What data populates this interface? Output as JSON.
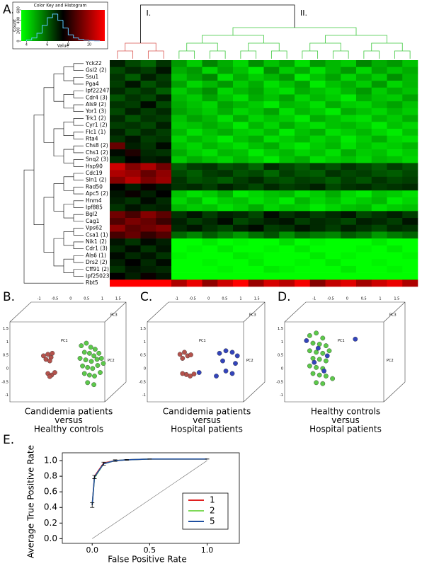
{
  "chart_data": [
    {
      "type": "histogram",
      "panel": "A.",
      "title": "Color Key and Histogram",
      "xlabel": "Value",
      "ylabel": "Count",
      "bins": [
        4,
        4.5,
        5,
        5.5,
        6,
        6.5,
        7,
        7.5,
        8,
        8.5,
        9,
        9.5,
        10,
        10.5,
        11
      ],
      "values": [
        20,
        60,
        150,
        300,
        450,
        520,
        400,
        250,
        120,
        60,
        30,
        15,
        8,
        3
      ],
      "color": "#5bc8ff",
      "scale_colors": [
        "#00ff00",
        "#000000",
        "#ff0000"
      ],
      "xlim": [
        3.5,
        11.5
      ],
      "ylim": [
        0,
        600
      ],
      "xticks": [
        4,
        6,
        8,
        10
      ],
      "yticks": [
        0,
        200,
        400,
        600
      ]
    },
    {
      "type": "heatmap",
      "clusters": [
        "I.",
        "II."
      ],
      "cluster_colors": [
        "#d9534f",
        "#3cc83c"
      ],
      "column_cluster": [
        0,
        0,
        0,
        0,
        1,
        1,
        1,
        1,
        1,
        1,
        1,
        1,
        1,
        1,
        1,
        1,
        1,
        1,
        1,
        1
      ],
      "rows": [
        "Yck22",
        "Gsl2 (2)",
        "Ssu1",
        "Pga4",
        "Ipf22247",
        "Cdr4 (3)",
        "Als9 (2)",
        "Yor1 (3)",
        "Trk1 (2)",
        "Cyr1 (2)",
        "Flc1 (1)",
        "Rta4",
        "Chs8 (2)",
        "Chs1 (2)",
        "Snq2 (3)",
        "Hsp90",
        "Cdc19",
        "Sln1 (2)",
        "Rad50",
        "Apc5 (2)",
        "Hnm4",
        "Ipf885",
        "Bgl2",
        "Cag1",
        "Vps62",
        "Csa1 (1)",
        "Nik1 (2)",
        "Cdr1 (3)",
        "Als6 (1)",
        "Drs2 (2)",
        "Cff91 (2)",
        "Ipf25023",
        "Rbt5"
      ],
      "values": [
        [
          7.2,
          6.8,
          6.5,
          7.0,
          6.0,
          5.5,
          6.2,
          5.8,
          5.4,
          6.1,
          5.6,
          5.9,
          5.3,
          6.0,
          5.7,
          5.5,
          6.2,
          5.8,
          6.0,
          5.6
        ],
        [
          6.8,
          7.1,
          6.9,
          7.3,
          5.8,
          6.0,
          5.4,
          5.9,
          5.6,
          5.2,
          6.1,
          5.5,
          5.8,
          5.3,
          5.7,
          6.0,
          5.4,
          5.9,
          5.6,
          5.8
        ],
        [
          7.0,
          6.6,
          7.2,
          6.9,
          5.6,
          5.9,
          6.2,
          5.3,
          5.8,
          5.5,
          5.7,
          6.0,
          5.2,
          5.6,
          5.9,
          5.4,
          5.8,
          5.5,
          6.1,
          5.7
        ],
        [
          6.9,
          7.3,
          6.7,
          7.0,
          5.9,
          5.4,
          5.7,
          6.0,
          5.5,
          5.8,
          5.3,
          5.6,
          5.9,
          5.2,
          5.6,
          5.8,
          5.5,
          6.0,
          5.4,
          5.7
        ],
        [
          7.1,
          6.8,
          7.0,
          6.6,
          5.5,
          5.8,
          6.1,
          5.4,
          5.7,
          5.9,
          5.5,
          5.3,
          5.8,
          5.6,
          5.4,
          5.7,
          6.0,
          5.5,
          5.8,
          5.6
        ],
        [
          6.7,
          7.0,
          6.8,
          7.2,
          5.7,
          5.5,
          5.9,
          5.6,
          5.3,
          5.8,
          5.6,
          5.9,
          5.4,
          5.7,
          5.5,
          5.2,
          5.8,
          5.6,
          5.5,
          5.9
        ],
        [
          7.0,
          6.9,
          7.4,
          6.8,
          5.8,
          5.6,
          5.4,
          5.9,
          5.7,
          5.5,
          5.2,
          5.7,
          5.6,
          5.3,
          5.8,
          5.5,
          5.4,
          5.7,
          5.9,
          5.6
        ],
        [
          6.8,
          7.2,
          6.9,
          7.1,
          5.9,
          5.7,
          5.5,
          5.8,
          5.4,
          5.6,
          5.9,
          5.3,
          5.7,
          5.5,
          5.2,
          5.8,
          5.6,
          5.4,
          5.7,
          5.5
        ],
        [
          7.1,
          6.7,
          7.0,
          6.9,
          5.6,
          5.9,
          5.7,
          5.3,
          5.8,
          5.4,
          5.6,
          5.5,
          5.2,
          5.8,
          5.6,
          5.4,
          5.3,
          5.7,
          5.5,
          5.8
        ],
        [
          6.9,
          7.0,
          6.8,
          7.2,
          5.5,
          5.6,
          5.8,
          5.6,
          5.2,
          5.7,
          5.4,
          5.8,
          5.5,
          5.3,
          5.6,
          5.7,
          5.5,
          5.2,
          5.6,
          5.4
        ],
        [
          7.2,
          6.8,
          7.1,
          6.9,
          5.7,
          5.3,
          5.6,
          5.8,
          5.5,
          5.4,
          5.7,
          5.2,
          5.6,
          5.8,
          5.3,
          5.5,
          5.7,
          5.4,
          5.2,
          5.6
        ],
        [
          7.0,
          7.3,
          6.9,
          7.0,
          5.4,
          5.7,
          5.5,
          5.2,
          5.6,
          5.8,
          5.3,
          5.5,
          5.7,
          5.4,
          5.6,
          5.2,
          5.5,
          5.8,
          5.4,
          5.3
        ],
        [
          8.5,
          7.2,
          7.0,
          7.4,
          5.6,
          5.4,
          5.7,
          5.5,
          5.3,
          5.6,
          5.8,
          5.4,
          5.2,
          5.5,
          5.7,
          5.3,
          5.6,
          5.4,
          5.5,
          5.7
        ],
        [
          7.4,
          7.8,
          7.1,
          7.0,
          5.8,
          5.5,
          5.3,
          5.7,
          5.6,
          5.2,
          5.5,
          5.7,
          5.4,
          5.6,
          5.3,
          5.8,
          5.5,
          5.6,
          5.3,
          5.5
        ],
        [
          7.1,
          7.5,
          7.2,
          7.3,
          5.5,
          5.8,
          5.6,
          5.4,
          5.7,
          5.5,
          5.2,
          5.6,
          5.8,
          5.3,
          5.5,
          5.6,
          5.4,
          5.7,
          5.6,
          5.4
        ],
        [
          9.5,
          8.8,
          9.2,
          8.6,
          6.6,
          6.9,
          7.0,
          6.7,
          6.8,
          6.5,
          7.1,
          6.8,
          6.6,
          6.9,
          6.7,
          7.0,
          6.8,
          6.6,
          6.9,
          6.7
        ],
        [
          9.2,
          9.0,
          8.5,
          8.9,
          6.8,
          6.6,
          6.9,
          7.0,
          6.7,
          6.8,
          6.5,
          6.9,
          6.7,
          6.6,
          7.0,
          6.8,
          6.9,
          6.7,
          6.6,
          6.8
        ],
        [
          8.8,
          9.3,
          8.7,
          9.0,
          7.0,
          6.7,
          6.8,
          6.6,
          6.9,
          7.1,
          6.8,
          6.7,
          6.9,
          6.8,
          6.6,
          6.9,
          6.7,
          7.0,
          6.8,
          6.9
        ],
        [
          7.5,
          7.2,
          7.6,
          7.3,
          7.0,
          7.1,
          6.9,
          7.2,
          7.0,
          6.8,
          7.1,
          6.9,
          7.0,
          7.2,
          6.8,
          7.0,
          7.1,
          6.9,
          7.0,
          7.1
        ],
        [
          7.3,
          7.6,
          7.2,
          7.5,
          5.6,
          5.3,
          5.5,
          5.8,
          5.2,
          5.4,
          5.6,
          5.7,
          5.3,
          5.5,
          5.8,
          5.4,
          5.2,
          5.6,
          5.5,
          5.3
        ],
        [
          7.2,
          7.0,
          7.4,
          7.1,
          5.4,
          5.7,
          5.2,
          5.5,
          5.6,
          5.3,
          5.5,
          5.2,
          5.7,
          5.4,
          5.6,
          5.3,
          5.5,
          5.7,
          5.2,
          5.4
        ],
        [
          7.0,
          7.3,
          7.1,
          7.2,
          5.7,
          5.5,
          5.6,
          5.3,
          5.5,
          5.8,
          5.4,
          5.6,
          5.5,
          5.2,
          5.4,
          5.6,
          5.7,
          5.3,
          5.5,
          5.6
        ],
        [
          8.6,
          8.2,
          8.8,
          8.4,
          7.0,
          7.3,
          6.9,
          7.2,
          7.1,
          6.8,
          7.4,
          7.0,
          7.2,
          6.9,
          7.1,
          7.3,
          6.8,
          7.0,
          7.2,
          6.9
        ],
        [
          8.3,
          8.7,
          8.5,
          8.1,
          7.2,
          6.9,
          7.1,
          7.4,
          6.8,
          7.0,
          7.2,
          7.3,
          6.9,
          7.1,
          7.0,
          6.8,
          7.2,
          7.1,
          6.9,
          7.3
        ],
        [
          8.9,
          8.4,
          8.6,
          8.8,
          7.1,
          7.3,
          7.0,
          6.8,
          7.2,
          7.4,
          6.9,
          7.0,
          7.3,
          7.1,
          6.9,
          7.2,
          7.0,
          6.8,
          7.1,
          7.0
        ],
        [
          8.2,
          8.5,
          8.0,
          8.3,
          6.5,
          6.2,
          6.6,
          6.3,
          6.0,
          6.4,
          6.7,
          6.1,
          6.5,
          6.3,
          6.2,
          6.6,
          6.4,
          6.0,
          6.3,
          6.5
        ],
        [
          7.3,
          7.0,
          7.4,
          7.2,
          5.0,
          4.8,
          5.2,
          4.9,
          5.1,
          4.7,
          5.0,
          5.3,
          4.8,
          5.1,
          4.9,
          5.0,
          4.7,
          5.2,
          4.9,
          5.0
        ],
        [
          7.1,
          7.4,
          7.0,
          7.3,
          4.9,
          5.1,
          4.8,
          5.2,
          4.7,
          5.0,
          5.1,
          4.9,
          5.2,
          4.8,
          5.0,
          4.7,
          5.1,
          4.9,
          5.2,
          4.8
        ],
        [
          7.4,
          7.1,
          7.3,
          7.0,
          5.1,
          4.9,
          5.0,
          4.8,
          5.2,
          5.1,
          4.8,
          5.0,
          4.9,
          5.2,
          4.8,
          5.1,
          5.0,
          4.9,
          4.8,
          5.1
        ],
        [
          7.2,
          7.5,
          7.1,
          7.4,
          4.8,
          5.0,
          5.1,
          4.9,
          4.8,
          5.2,
          5.0,
          4.7,
          5.1,
          4.9,
          5.2,
          4.8,
          4.9,
          5.1,
          5.0,
          4.8
        ],
        [
          7.0,
          7.3,
          7.2,
          7.1,
          5.0,
          4.8,
          4.9,
          5.1,
          5.0,
          4.8,
          5.2,
          5.1,
          4.7,
          5.0,
          4.9,
          5.2,
          4.8,
          5.0,
          5.1,
          4.9
        ],
        [
          7.5,
          7.2,
          7.6,
          7.3,
          4.6,
          4.5,
          4.7,
          4.4,
          4.6,
          4.8,
          4.5,
          4.6,
          4.4,
          4.7,
          4.5,
          4.6,
          4.8,
          4.5,
          4.4,
          4.6
        ],
        [
          10.5,
          10.8,
          10.2,
          10.6,
          9.2,
          9.8,
          8.9,
          9.5,
          10.1,
          9.0,
          9.6,
          9.3,
          9.9,
          8.8,
          9.4,
          9.7,
          9.1,
          9.5,
          9.8,
          9.2
        ]
      ]
    },
    {
      "type": "scatter3d",
      "panel": "B.",
      "caption": [
        "Candidemia patients",
        "versus",
        "Healthy controls"
      ],
      "axis_labels": [
        "PC1",
        "PC2",
        "PC3"
      ],
      "ticks": [
        -1,
        -0.5,
        0,
        0.5,
        1,
        1.5
      ],
      "xlim": [
        -1,
        1
      ],
      "ylim": [
        -1,
        1
      ],
      "series": [
        {
          "color": "#b4524c",
          "x": [
            -0.4,
            -0.33,
            -0.28,
            -0.36,
            -0.3,
            -0.26,
            -0.33,
            -0.27,
            -0.22,
            -0.3
          ],
          "values": [
            0.05,
            0.08,
            0.02,
            -0.02,
            -0.05,
            0.1,
            -0.3,
            -0.33,
            -0.28,
            -0.36
          ]
        },
        {
          "color": "#5cc94a",
          "x": [
            0.2,
            0.28,
            0.35,
            0.42,
            0.25,
            0.33,
            0.4,
            0.48,
            0.18,
            0.27,
            0.36,
            0.45,
            0.52,
            0.22,
            0.3,
            0.38,
            0.46,
            0.55,
            0.25,
            0.33,
            0.41,
            0.5,
            0.3,
            0.4
          ],
          "values": [
            0.25,
            0.3,
            0.22,
            0.18,
            0.12,
            0.1,
            0.05,
            0.1,
            0.0,
            -0.03,
            -0.06,
            -0.02,
            0.0,
            -0.15,
            -0.18,
            -0.2,
            -0.14,
            -0.1,
            -0.3,
            -0.33,
            -0.35,
            -0.28,
            -0.48,
            -0.52
          ]
        }
      ]
    },
    {
      "type": "scatter3d",
      "panel": "C.",
      "caption": [
        "Candidemia patients",
        "versus",
        "Hospital patients"
      ],
      "axis_labels": [
        "PC1",
        "PC2",
        "PC3"
      ],
      "ticks": [
        -1,
        -0.5,
        0,
        0.5,
        1,
        1.5
      ],
      "xlim": [
        -1,
        1
      ],
      "ylim": [
        -1,
        1
      ],
      "series": [
        {
          "color": "#b4524c",
          "x": [
            -0.42,
            -0.35,
            -0.3,
            -0.38,
            -0.25,
            -0.32,
            -0.26,
            -0.38,
            -0.2
          ],
          "values": [
            0.08,
            0.12,
            0.05,
            0.0,
            0.07,
            -0.32,
            -0.35,
            -0.3,
            -0.31
          ]
        },
        {
          "color": "#3344bb",
          "x": [
            0.2,
            0.3,
            0.4,
            0.48,
            0.25,
            0.45,
            0.3,
            0.4,
            0.15,
            -0.12
          ],
          "values": [
            0.1,
            0.15,
            0.12,
            0.05,
            -0.05,
            -0.1,
            -0.25,
            -0.3,
            -0.35,
            -0.28
          ]
        }
      ]
    },
    {
      "type": "scatter3d",
      "panel": "D.",
      "caption": [
        "Healthy controls",
        "versus",
        "Hospital patients"
      ],
      "axis_labels": [
        "PC1",
        "PC2",
        "PC3"
      ],
      "ticks": [
        -1,
        -0.5,
        0,
        0.5,
        1,
        1.5
      ],
      "xlim": [
        -1,
        1
      ],
      "ylim": [
        -1,
        1
      ],
      "series": [
        {
          "color": "#5cc94a",
          "x": [
            -0.55,
            -0.45,
            -0.35,
            -0.5,
            -0.4,
            -0.3,
            -0.55,
            -0.45,
            -0.35,
            -0.25,
            -0.5,
            -0.4,
            -0.3,
            -0.55,
            -0.45,
            -0.35,
            -0.5,
            -0.4,
            -0.3,
            -0.45,
            -0.35,
            -0.2
          ],
          "values": [
            0.45,
            0.5,
            0.4,
            0.3,
            0.28,
            0.25,
            0.15,
            0.12,
            0.1,
            0.15,
            0.0,
            -0.02,
            -0.05,
            -0.15,
            -0.18,
            -0.2,
            -0.3,
            -0.33,
            -0.35,
            -0.48,
            -0.5,
            -0.4
          ]
        },
        {
          "color": "#3344bb",
          "x": [
            -0.6,
            -0.42,
            -0.28,
            -0.48,
            -0.33,
            0.15
          ],
          "values": [
            0.35,
            0.2,
            0.05,
            -0.08,
            -0.25,
            0.38
          ]
        }
      ]
    },
    {
      "type": "line",
      "panel": "E.",
      "xlabel": "False Positive Rate",
      "ylabel": "Average True Positive Rate",
      "x": [
        0,
        0.02,
        0.1,
        0.2,
        0.3,
        0.5,
        1.0
      ],
      "xlim": [
        -0.26,
        1.28
      ],
      "ylim": [
        -0.06,
        1.1
      ],
      "xticks": [
        {
          "value": 0,
          "label": "0.0"
        },
        0.5,
        {
          "value": 1,
          "label": "1.0"
        }
      ],
      "yticks": [
        {
          "value": 0,
          "label": "0.0"
        },
        0.2,
        0.4,
        0.6,
        0.8,
        {
          "value": 1,
          "label": "1.0"
        }
      ],
      "legend": "lower-right",
      "series": [
        {
          "name": "1",
          "color": "#e02020",
          "values": [
            0.43,
            0.8,
            0.97,
            1.0,
            1.01,
            1.02,
            1.02
          ]
        },
        {
          "name": "2",
          "color": "#7ed957",
          "values": [
            0.43,
            0.78,
            0.96,
            1.0,
            1.01,
            1.02,
            1.02
          ]
        },
        {
          "name": "5",
          "color": "#1f4fa0",
          "values": [
            0.43,
            0.79,
            0.96,
            1.0,
            1.01,
            1.02,
            1.02
          ],
          "errors": [
            0.03,
            0.02,
            0.02,
            0.01,
            0.005,
            0,
            0
          ]
        }
      ]
    }
  ]
}
